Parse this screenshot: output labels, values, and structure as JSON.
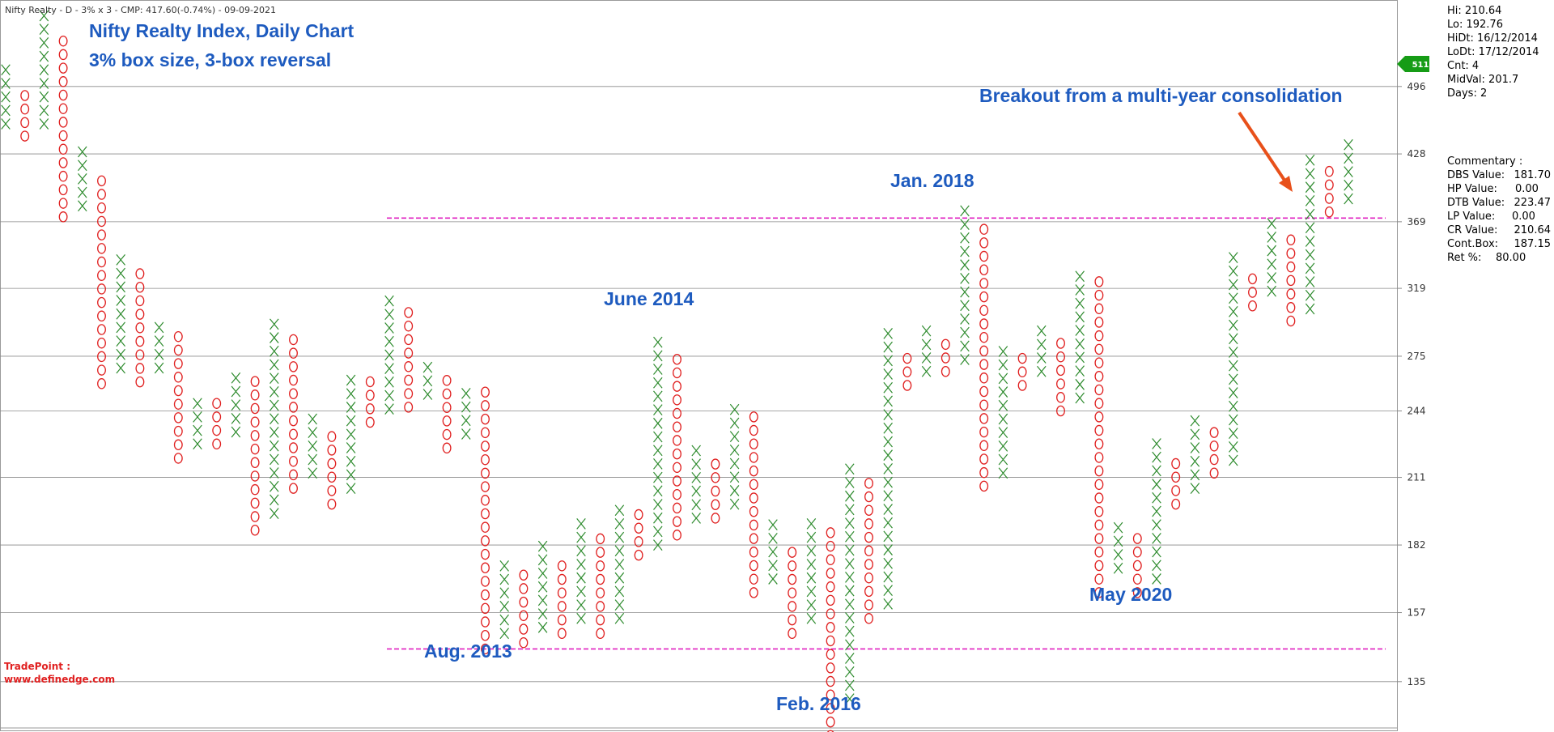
{
  "header": "Nifty Realty - D - 3% x 3 - CMP: 417.60(-0.74%) - 09-09-2021",
  "watermark": {
    "line1": "TradePoint :",
    "line2": "www.definedge.com"
  },
  "cmp_tag": "511",
  "colors": {
    "x": "#2e8b2e",
    "o": "#e02020",
    "annotation": "#1e5bbf",
    "support": "#e020c0",
    "arrow": "#e8501a",
    "tag": "#169c16"
  },
  "stats": [
    "Hi: 210.64",
    "Lo: 192.76",
    "HiDt: 16/12/2014",
    "LoDt: 17/12/2014",
    "Cnt: 4",
    "MidVal: 201.7",
    "Days: 2"
  ],
  "commentary": {
    "title": "Commentary :",
    "items": [
      {
        "label": "DBS Value:",
        "value": "181.70"
      },
      {
        "label": "HP Value:",
        "value": "0.00"
      },
      {
        "label": "DTB Value:",
        "value": "223.47"
      },
      {
        "label": "LP Value:",
        "value": "0.00"
      },
      {
        "label": "CR Value:",
        "value": "210.64"
      },
      {
        "label": "Cont.Box:",
        "value": "187.15"
      },
      {
        "label": "Ret %:",
        "value": "80.00"
      }
    ]
  },
  "chart_data": {
    "type": "point-and-figure",
    "title": "Nifty Realty Index, Daily Chart",
    "subtitle": "3% box size, 3-box reversal",
    "y_scale": "log",
    "y_ticks": [
      496,
      428,
      369,
      319,
      275,
      244,
      211,
      182,
      157,
      135
    ],
    "ylim": [
      122,
      595
    ],
    "box_ratio": 1.03,
    "columns": [
      {
        "t": "X",
        "low": 457,
        "high": 510
      },
      {
        "t": "O",
        "low": 445,
        "high": 480
      },
      {
        "t": "X",
        "low": 457,
        "high": 585
      },
      {
        "t": "O",
        "low": 373,
        "high": 555
      },
      {
        "t": "X",
        "low": 382,
        "high": 425
      },
      {
        "t": "O",
        "low": 259,
        "high": 404
      },
      {
        "t": "X",
        "low": 268,
        "high": 341
      },
      {
        "t": "O",
        "low": 260,
        "high": 330
      },
      {
        "t": "X",
        "low": 268,
        "high": 295
      },
      {
        "t": "O",
        "low": 220,
        "high": 286
      },
      {
        "t": "X",
        "low": 227,
        "high": 251
      },
      {
        "t": "O",
        "low": 227,
        "high": 246
      },
      {
        "t": "X",
        "low": 233,
        "high": 264
      },
      {
        "t": "O",
        "low": 188,
        "high": 258
      },
      {
        "t": "X",
        "low": 195,
        "high": 295
      },
      {
        "t": "O",
        "low": 206,
        "high": 286
      },
      {
        "t": "X",
        "low": 213,
        "high": 237
      },
      {
        "t": "O",
        "low": 199,
        "high": 231
      },
      {
        "t": "X",
        "low": 206,
        "high": 264
      },
      {
        "t": "O",
        "low": 238,
        "high": 258
      },
      {
        "t": "X",
        "low": 245,
        "high": 312
      },
      {
        "t": "O",
        "low": 246,
        "high": 303
      },
      {
        "t": "X",
        "low": 253,
        "high": 270
      },
      {
        "t": "O",
        "low": 225,
        "high": 264
      },
      {
        "t": "X",
        "low": 232,
        "high": 257
      },
      {
        "t": "O",
        "low": 145,
        "high": 251
      },
      {
        "t": "X",
        "low": 150,
        "high": 175
      },
      {
        "t": "O",
        "low": 147,
        "high": 168
      },
      {
        "t": "X",
        "low": 152,
        "high": 180
      },
      {
        "t": "O",
        "low": 150,
        "high": 174
      },
      {
        "t": "X",
        "low": 155,
        "high": 191
      },
      {
        "t": "O",
        "low": 150,
        "high": 186
      },
      {
        "t": "X",
        "low": 155,
        "high": 199
      },
      {
        "t": "O",
        "low": 178,
        "high": 194
      },
      {
        "t": "X",
        "low": 182,
        "high": 281
      },
      {
        "t": "O",
        "low": 186,
        "high": 277
      },
      {
        "t": "X",
        "low": 193,
        "high": 223
      },
      {
        "t": "O",
        "low": 193,
        "high": 215
      },
      {
        "t": "X",
        "low": 199,
        "high": 245
      },
      {
        "t": "O",
        "low": 164,
        "high": 238
      },
      {
        "t": "X",
        "low": 169,
        "high": 190
      },
      {
        "t": "O",
        "low": 150,
        "high": 180
      },
      {
        "t": "X",
        "low": 155,
        "high": 191
      },
      {
        "t": "O",
        "low": 120,
        "high": 186
      },
      {
        "t": "X",
        "low": 130,
        "high": 217
      },
      {
        "t": "O",
        "low": 155,
        "high": 208
      },
      {
        "t": "X",
        "low": 160,
        "high": 285
      },
      {
        "t": "O",
        "low": 258,
        "high": 277
      },
      {
        "t": "X",
        "low": 266,
        "high": 292
      },
      {
        "t": "O",
        "low": 266,
        "high": 283
      },
      {
        "t": "X",
        "low": 273,
        "high": 374
      },
      {
        "t": "O",
        "low": 207,
        "high": 364
      },
      {
        "t": "X",
        "low": 213,
        "high": 277
      },
      {
        "t": "O",
        "low": 258,
        "high": 272
      },
      {
        "t": "X",
        "low": 266,
        "high": 292
      },
      {
        "t": "O",
        "low": 244,
        "high": 283
      },
      {
        "t": "X",
        "low": 251,
        "high": 331
      },
      {
        "t": "O",
        "low": 164,
        "high": 321
      },
      {
        "t": "X",
        "low": 173,
        "high": 191
      },
      {
        "t": "O",
        "low": 164,
        "high": 185
      },
      {
        "t": "X",
        "low": 169,
        "high": 225
      },
      {
        "t": "O",
        "low": 199,
        "high": 215
      },
      {
        "t": "X",
        "low": 206,
        "high": 238
      },
      {
        "t": "O",
        "low": 213,
        "high": 231
      },
      {
        "t": "X",
        "low": 219,
        "high": 340
      },
      {
        "t": "O",
        "low": 307,
        "high": 330
      },
      {
        "t": "X",
        "low": 317,
        "high": 363
      },
      {
        "t": "O",
        "low": 297,
        "high": 352
      },
      {
        "t": "X",
        "low": 305,
        "high": 422
      },
      {
        "t": "O",
        "low": 377,
        "high": 410
      },
      {
        "t": "X",
        "low": 388,
        "high": 437
      }
    ],
    "support_lines": [
      {
        "value": 372,
        "label": "Jan. 2018"
      },
      {
        "value": 145,
        "label": "Aug. 2013"
      }
    ],
    "annotations": [
      "June 2014",
      "Jan. 2018",
      "Aug. 2013",
      "Feb. 2016",
      "May 2020",
      "Breakout from a multi-year consolidation"
    ]
  }
}
